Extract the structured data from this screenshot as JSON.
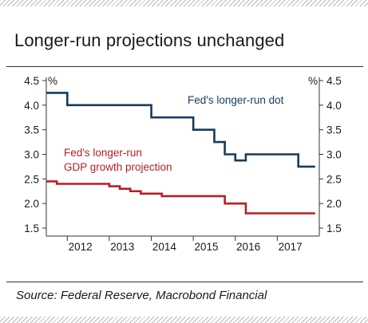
{
  "title": "Longer-run projections unchanged",
  "source": "Source: Federal Reserve, Macrobond Financial",
  "chart_data": {
    "type": "line",
    "y_unit_left": "%",
    "y_unit_right": "%",
    "ylim": [
      1.5,
      4.5
    ],
    "yticks": [
      "1.5",
      "2.0",
      "2.5",
      "3.0",
      "3.5",
      "4.0",
      "4.5"
    ],
    "xlim": [
      2011.5,
      2018.0
    ],
    "xticks": [
      "2012",
      "2013",
      "2014",
      "2015",
      "2016",
      "2017"
    ],
    "grid": false,
    "series": [
      {
        "name": "Fed's longer-run dot",
        "color": "#163c5c",
        "step": true,
        "x": [
          2011.5,
          2012.0,
          2014.0,
          2015.0,
          2015.5,
          2015.75,
          2016.0,
          2016.25,
          2017.5,
          2017.9
        ],
        "y": [
          4.25,
          4.0,
          3.75,
          3.5,
          3.25,
          3.0,
          2.875,
          3.0,
          2.75,
          2.75
        ]
      },
      {
        "name": "Fed's longer-run GDP growth projection",
        "color": "#b51f24",
        "step": true,
        "x": [
          2011.5,
          2011.75,
          2013.0,
          2013.25,
          2013.5,
          2013.75,
          2014.25,
          2014.5,
          2015.75,
          2016.25,
          2017.9
        ],
        "y": [
          2.45,
          2.4,
          2.35,
          2.3,
          2.25,
          2.2,
          2.15,
          2.15,
          2.0,
          1.8,
          1.8
        ]
      }
    ],
    "labels": {
      "dot": "Fed's longer-run dot",
      "gdp_line1": "Fed's longer-run",
      "gdp_line2": "GDP growth projection"
    }
  }
}
